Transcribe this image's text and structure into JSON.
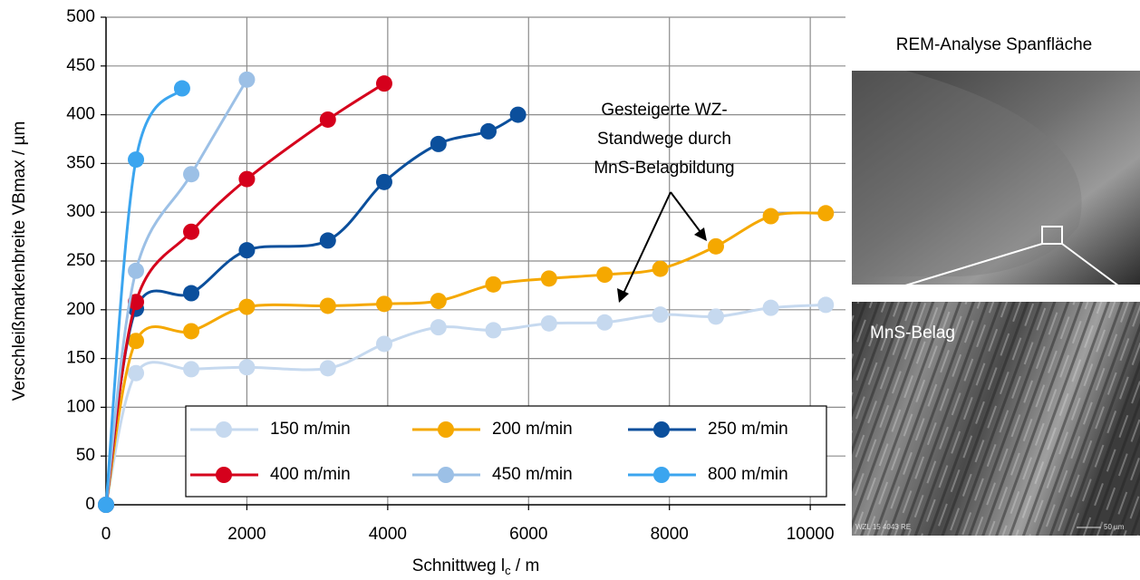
{
  "chart_data": {
    "type": "line",
    "y_label": "Verschleißmarkenbreite VBmax / µm",
    "x_label": [
      "Schnittweg l",
      "c",
      " / m"
    ],
    "xlim": [
      0,
      10500
    ],
    "xticks": [
      0,
      2000,
      4000,
      6000,
      8000,
      10000
    ],
    "ylim": [
      0,
      500
    ],
    "yticks": [
      0,
      50,
      100,
      150,
      200,
      250,
      300,
      350,
      400,
      450,
      500
    ],
    "grid": true,
    "smooth": true,
    "series": [
      {
        "name": "150 m/min",
        "color": "#c6d9ef",
        "x": [
          0,
          425,
          1210,
          2000,
          3150,
          3950,
          4720,
          5500,
          6290,
          7080,
          7870,
          8660,
          9440,
          10220
        ],
        "values": [
          0,
          135,
          139,
          141,
          140,
          165,
          182,
          179,
          186,
          187,
          195,
          193,
          202,
          205
        ]
      },
      {
        "name": "200 m/min",
        "color": "#f5a800",
        "x": [
          0,
          425,
          1210,
          2000,
          3150,
          3950,
          4720,
          5500,
          6290,
          7080,
          7870,
          8660,
          9440,
          10220
        ],
        "values": [
          0,
          168,
          178,
          203,
          204,
          206,
          209,
          226,
          232,
          236,
          242,
          265,
          296,
          299
        ]
      },
      {
        "name": "250 m/min",
        "color": "#0b4f9c",
        "x": [
          0,
          425,
          1210,
          2000,
          3150,
          3950,
          4720,
          5430,
          5850
        ],
        "values": [
          0,
          201,
          217,
          261,
          271,
          331,
          370,
          383,
          400
        ]
      },
      {
        "name": "400 m/min",
        "color": "#d5001c",
        "x": [
          0,
          425,
          1210,
          2000,
          3150,
          3950
        ],
        "values": [
          0,
          208,
          280,
          334,
          395,
          432
        ]
      },
      {
        "name": "450 m/min",
        "color": "#9cc0e6",
        "x": [
          0,
          425,
          1210,
          2000
        ],
        "values": [
          0,
          240,
          339,
          436
        ]
      },
      {
        "name": "800 m/min",
        "color": "#3ba5ef",
        "x": [
          0,
          425,
          1080
        ],
        "values": [
          0,
          354,
          427
        ]
      }
    ],
    "annotation": [
      "Gesteigerte WZ-",
      "Standwege durch",
      "MnS-Belagbildung"
    ]
  },
  "side_panel": {
    "title": "REM-Analyse Spanfläche",
    "inset_label": "MnS-Belag",
    "image_caption": "WZL 15 4043 RE",
    "scale_bar": "50 µm"
  }
}
